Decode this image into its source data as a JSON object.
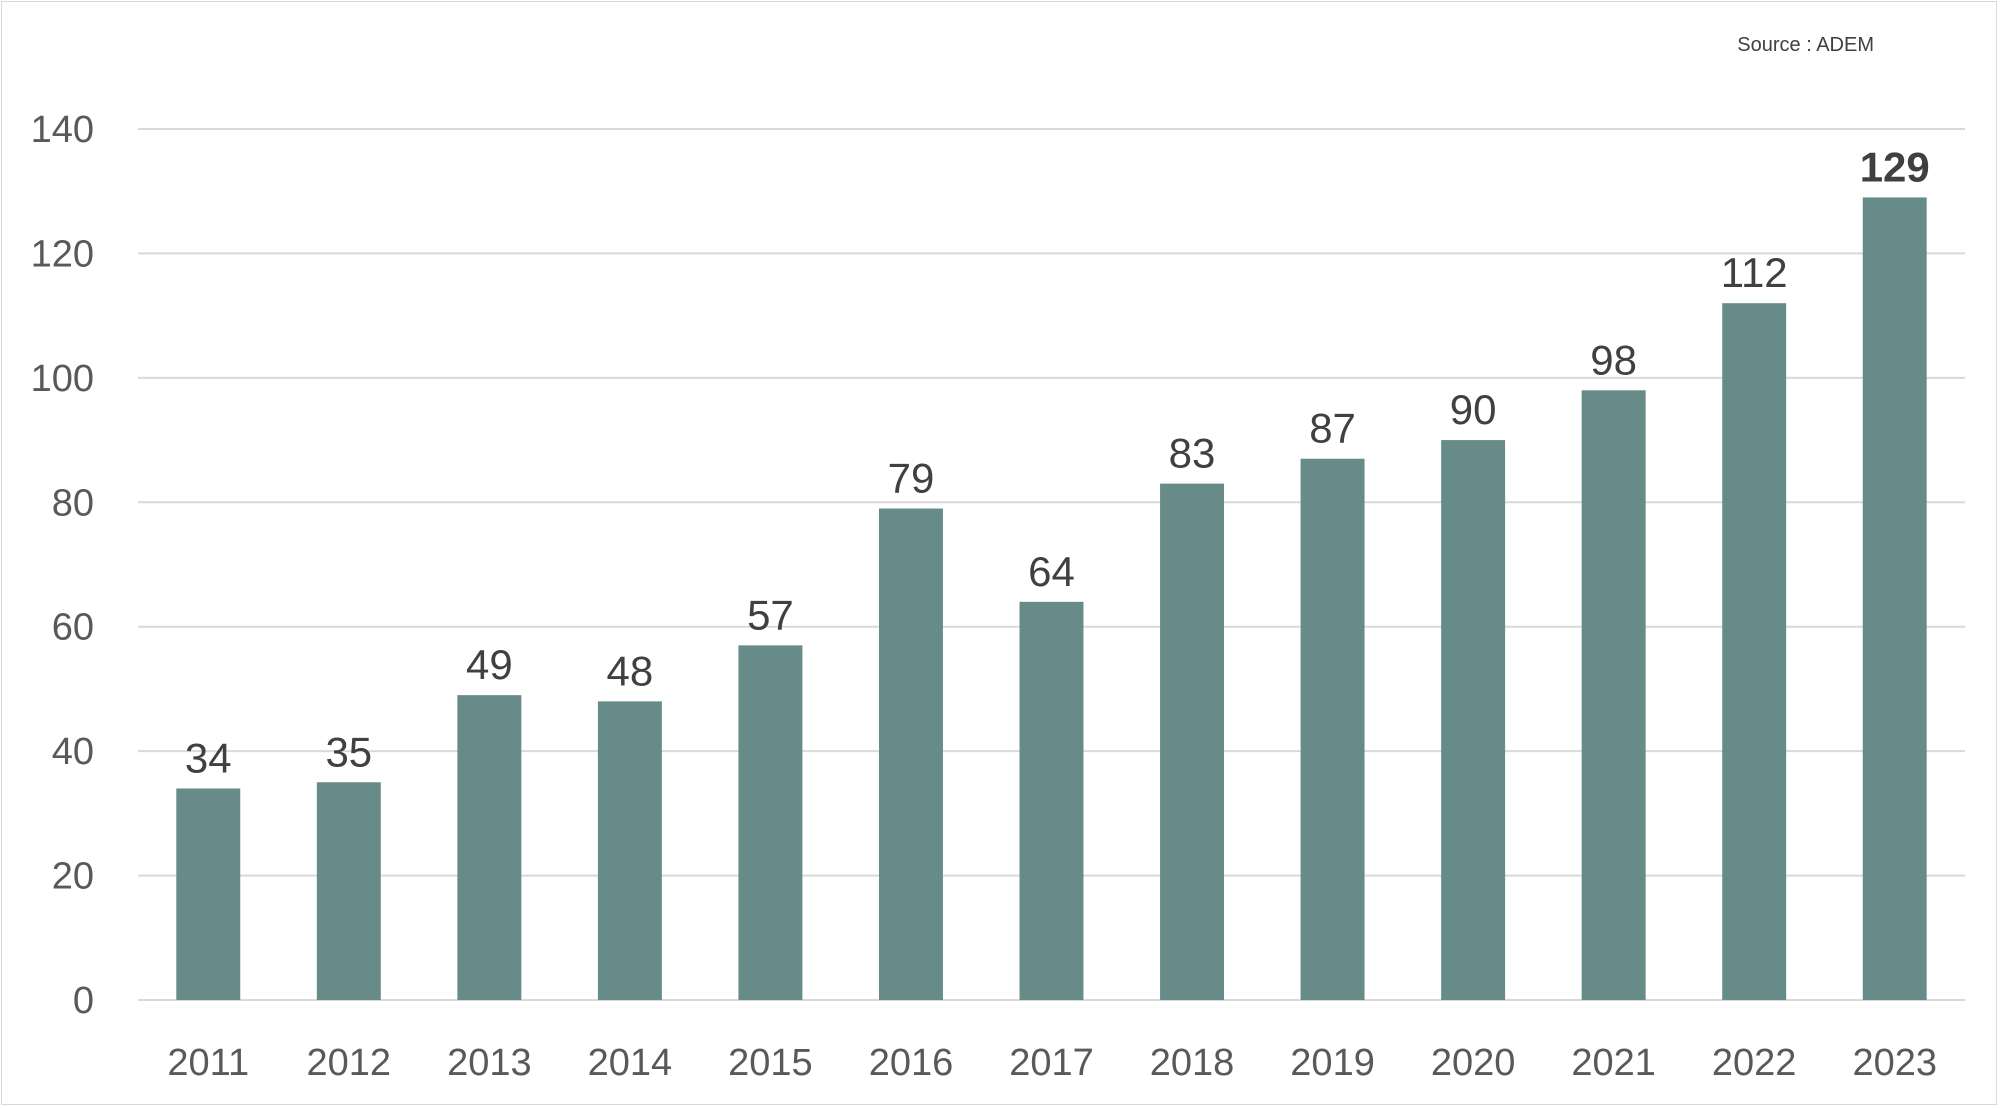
{
  "source": "Source : ADEM",
  "chart_data": {
    "type": "bar",
    "categories": [
      "2011",
      "2012",
      "2013",
      "2014",
      "2015",
      "2016",
      "2017",
      "2018",
      "2019",
      "2020",
      "2021",
      "2022",
      "2023"
    ],
    "values": [
      34,
      35,
      49,
      48,
      57,
      79,
      64,
      83,
      87,
      90,
      98,
      112,
      129
    ],
    "title": "",
    "xlabel": "",
    "ylabel": "",
    "ylim": [
      0,
      140
    ],
    "yticks": [
      0,
      20,
      40,
      60,
      80,
      100,
      120,
      140
    ],
    "grid": true,
    "bar_color": "#668b89",
    "gridline_color": "#d9d9d9",
    "highlight_last_label": true
  }
}
